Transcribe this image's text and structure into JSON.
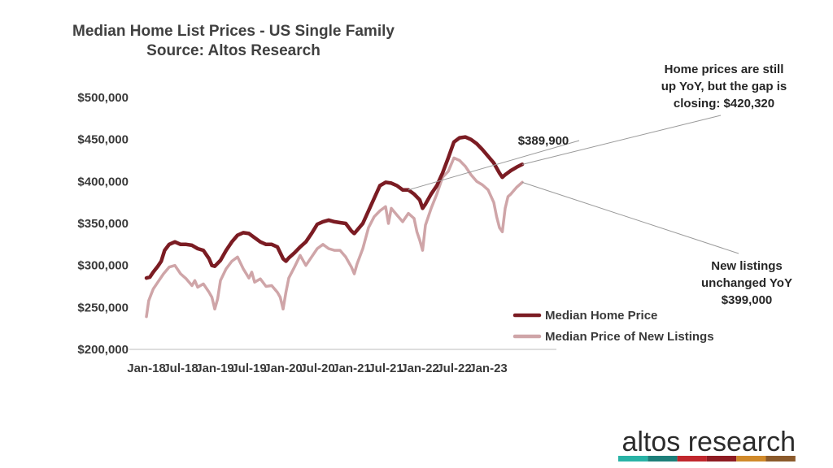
{
  "chart_data": {
    "type": "line",
    "title": "Median Home List Prices - US Single Family",
    "subtitle": "Source: Altos Research",
    "xlabel": "",
    "ylabel": "",
    "ylim": [
      200000,
      500000
    ],
    "y_ticks": [
      "$200,000",
      "$250,000",
      "$300,000",
      "$350,000",
      "$400,000",
      "$450,000",
      "$500,000"
    ],
    "x_ticks": [
      "Jan-18",
      "Jul-18",
      "Jan-19",
      "Jul-19",
      "Jan-20",
      "Jul-20",
      "Jan-21",
      "Jul-21",
      "Jan-22",
      "Jul-22",
      "Jan-23"
    ],
    "x_index_note": "months since Jan-2018",
    "series": [
      {
        "name": "Median Home Price",
        "color": "#7b1c23",
        "points": [
          [
            0,
            285000
          ],
          [
            0.6,
            286000
          ],
          [
            1.2,
            292000
          ],
          [
            2,
            299000
          ],
          [
            2.6,
            305000
          ],
          [
            3.2,
            318000
          ],
          [
            4,
            325000
          ],
          [
            5,
            328000
          ],
          [
            6,
            325000
          ],
          [
            7,
            325000
          ],
          [
            8,
            324000
          ],
          [
            9,
            320000
          ],
          [
            10,
            318000
          ],
          [
            11,
            308000
          ],
          [
            11.5,
            300000
          ],
          [
            12,
            299000
          ],
          [
            13,
            306000
          ],
          [
            14,
            318000
          ],
          [
            15,
            328000
          ],
          [
            16,
            336000
          ],
          [
            17,
            339000
          ],
          [
            18,
            338000
          ],
          [
            19,
            333000
          ],
          [
            20,
            328000
          ],
          [
            21,
            325000
          ],
          [
            22,
            325000
          ],
          [
            23,
            322000
          ],
          [
            24,
            308000
          ],
          [
            24.5,
            305000
          ],
          [
            25,
            309000
          ],
          [
            26,
            315000
          ],
          [
            27,
            322000
          ],
          [
            28,
            328000
          ],
          [
            29,
            338000
          ],
          [
            30,
            349000
          ],
          [
            31,
            352000
          ],
          [
            32,
            354000
          ],
          [
            33,
            352000
          ],
          [
            34,
            351000
          ],
          [
            35,
            350000
          ],
          [
            36,
            341000
          ],
          [
            36.5,
            338000
          ],
          [
            37,
            342000
          ],
          [
            38,
            350000
          ],
          [
            39,
            365000
          ],
          [
            40,
            380000
          ],
          [
            41,
            395000
          ],
          [
            42,
            399000
          ],
          [
            43,
            398000
          ],
          [
            44,
            395000
          ],
          [
            45,
            390000
          ],
          [
            46,
            389900
          ],
          [
            47,
            385000
          ],
          [
            48,
            378000
          ],
          [
            48.5,
            368000
          ],
          [
            49,
            373000
          ],
          [
            50,
            385000
          ],
          [
            51,
            395000
          ],
          [
            52,
            410000
          ],
          [
            53,
            428000
          ],
          [
            54,
            447000
          ],
          [
            55,
            452000
          ],
          [
            56,
            453000
          ],
          [
            57,
            450000
          ],
          [
            58,
            445000
          ],
          [
            59,
            438000
          ],
          [
            60,
            430000
          ],
          [
            61,
            422000
          ],
          [
            62,
            410000
          ],
          [
            62.5,
            405000
          ],
          [
            63,
            408000
          ],
          [
            64,
            413000
          ],
          [
            65,
            417000
          ],
          [
            66,
            420320
          ]
        ]
      },
      {
        "name": "Median Price of New Listings",
        "color": "#cfa5a8",
        "points": [
          [
            0,
            239000
          ],
          [
            0.4,
            258000
          ],
          [
            0.8,
            265000
          ],
          [
            1.2,
            272000
          ],
          [
            2,
            280000
          ],
          [
            3,
            290000
          ],
          [
            4,
            298000
          ],
          [
            5,
            300000
          ],
          [
            6,
            290000
          ],
          [
            7,
            284000
          ],
          [
            8,
            276000
          ],
          [
            8.5,
            282000
          ],
          [
            9,
            274000
          ],
          [
            10,
            278000
          ],
          [
            11,
            268000
          ],
          [
            11.5,
            262000
          ],
          [
            12,
            248000
          ],
          [
            12.5,
            260000
          ],
          [
            13,
            282000
          ],
          [
            14,
            296000
          ],
          [
            15,
            305000
          ],
          [
            16,
            310000
          ],
          [
            17,
            296000
          ],
          [
            18,
            285000
          ],
          [
            18.5,
            292000
          ],
          [
            19,
            280000
          ],
          [
            20,
            284000
          ],
          [
            21,
            275000
          ],
          [
            22,
            276000
          ],
          [
            23,
            268000
          ],
          [
            23.5,
            262000
          ],
          [
            24,
            248000
          ],
          [
            24.5,
            268000
          ],
          [
            25,
            285000
          ],
          [
            26,
            298000
          ],
          [
            27,
            312000
          ],
          [
            28,
            300000
          ],
          [
            29,
            310000
          ],
          [
            30,
            320000
          ],
          [
            31,
            325000
          ],
          [
            32,
            320000
          ],
          [
            33,
            318000
          ],
          [
            34,
            318000
          ],
          [
            35,
            310000
          ],
          [
            36,
            298000
          ],
          [
            36.5,
            290000
          ],
          [
            37,
            302000
          ],
          [
            38,
            320000
          ],
          [
            39,
            345000
          ],
          [
            40,
            358000
          ],
          [
            41,
            365000
          ],
          [
            42,
            370000
          ],
          [
            42.5,
            350000
          ],
          [
            43,
            368000
          ],
          [
            44,
            360000
          ],
          [
            45,
            352000
          ],
          [
            46,
            362000
          ],
          [
            47,
            356000
          ],
          [
            47.5,
            340000
          ],
          [
            48,
            330000
          ],
          [
            48.5,
            318000
          ],
          [
            49,
            348000
          ],
          [
            50,
            368000
          ],
          [
            51,
            385000
          ],
          [
            52,
            405000
          ],
          [
            53,
            412000
          ],
          [
            54,
            428000
          ],
          [
            55,
            425000
          ],
          [
            56,
            418000
          ],
          [
            57,
            408000
          ],
          [
            58,
            400000
          ],
          [
            59,
            396000
          ],
          [
            60,
            390000
          ],
          [
            61,
            375000
          ],
          [
            61.5,
            358000
          ],
          [
            62,
            345000
          ],
          [
            62.5,
            340000
          ],
          [
            63,
            368000
          ],
          [
            63.5,
            382000
          ],
          [
            64,
            385000
          ],
          [
            65,
            393000
          ],
          [
            66,
            399000
          ]
        ]
      }
    ],
    "legend": [
      {
        "label": "Median Home Price",
        "color": "#7b1c23"
      },
      {
        "label": "Median Price of New Listings",
        "color": "#cfa5a8"
      }
    ],
    "legend_position": "bottom-right",
    "annotations": [
      {
        "id": "peak",
        "lines": [
          "$389,900"
        ],
        "x": 46,
        "y": 389900
      },
      {
        "id": "price",
        "lines": [
          "Home prices are still",
          "up YoY, but the gap is",
          "closing: $420,320"
        ],
        "x": 66,
        "y": 420320
      },
      {
        "id": "listings",
        "lines": [
          "New listings",
          "unchanged YoY",
          "$399,000"
        ],
        "x": 66,
        "y": 399000
      }
    ]
  },
  "brand": {
    "name": "altos research",
    "stripe_colors": [
      "#29b3a6",
      "#1d7f7a",
      "#c1272d",
      "#8e1b22",
      "#d08a2b",
      "#8b5a2b"
    ]
  }
}
